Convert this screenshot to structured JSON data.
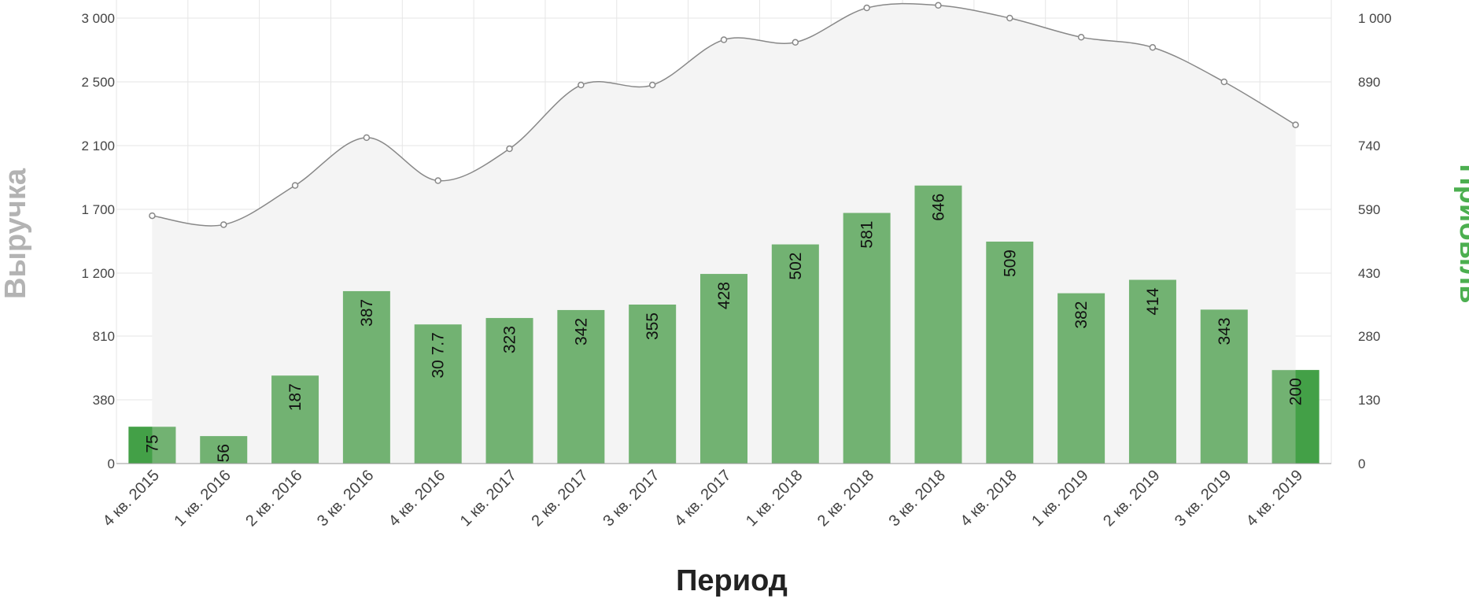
{
  "chart_data": {
    "type": "bar+line",
    "categories": [
      "4 кв. 2015",
      "1 кв. 2016",
      "2 кв. 2016",
      "3 кв. 2016",
      "4 кв. 2016",
      "1 кв. 2017",
      "2 кв. 2017",
      "3 кв. 2017",
      "4 кв. 2017",
      "1 кв. 2018",
      "2 кв. 2018",
      "3 кв. 2018",
      "4 кв. 2018",
      "1 кв. 2019",
      "2 кв. 2019",
      "3 кв. 2019",
      "4 кв. 2019"
    ],
    "series": [
      {
        "axis": "left",
        "kind": "area-line",
        "values": [
          1650,
          1580,
          1850,
          2150,
          1880,
          2080,
          2480,
          2480,
          2830,
          2810,
          3080,
          3100,
          3000,
          2850,
          2770,
          2500,
          2230
        ]
      },
      {
        "axis": "right",
        "kind": "bar",
        "values": [
          75,
          56,
          187,
          387,
          307.7,
          323,
          342,
          355,
          428,
          502,
          581,
          646,
          509,
          382,
          414,
          343,
          200
        ],
        "labels": [
          "75",
          "56",
          "187",
          "387",
          "30 7.7",
          "323",
          "342",
          "355",
          "428",
          "502",
          "581",
          "646",
          "509",
          "382",
          "414",
          "343",
          "200"
        ]
      }
    ],
    "xlabel": "Период",
    "ylabel_left": "Выручка",
    "ylabel_right": "Прибыль",
    "left_ticks": [
      "0",
      "380",
      "810",
      "1 200",
      "1 700",
      "2 100",
      "2 500",
      "3 000"
    ],
    "left_tick_values": [
      0,
      380,
      810,
      1200,
      1700,
      2100,
      2500,
      3000
    ],
    "right_ticks": [
      "0",
      "130",
      "280",
      "430",
      "590",
      "740",
      "890",
      "1 000"
    ],
    "right_tick_values": [
      0,
      130,
      280,
      430,
      590,
      740,
      890,
      1000
    ],
    "grid": true,
    "colors": {
      "bar": "#72b272",
      "bar_highlight": "#43a047",
      "line": "#888888",
      "area": "#f4f4f4",
      "left_title": "#b3b3b3",
      "right_title": "#4caf50"
    }
  }
}
